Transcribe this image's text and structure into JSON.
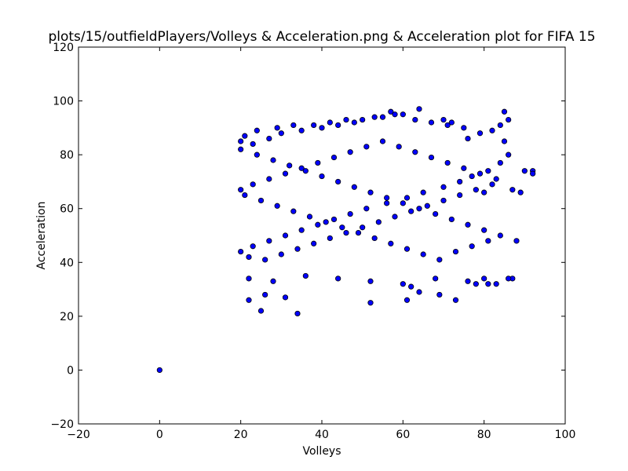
{
  "chart_data": {
    "type": "scatter",
    "title": "plots/15/outfieldPlayers/Volleys & Acceleration.png & Acceleration plot for FIFA 15",
    "xlabel": "Volleys",
    "ylabel": "Acceleration",
    "xlim": [
      -20,
      100
    ],
    "ylim": [
      -20,
      120
    ],
    "x_ticks": [
      -20,
      0,
      20,
      40,
      60,
      80,
      100
    ],
    "y_ticks": [
      -20,
      0,
      20,
      40,
      60,
      80,
      100,
      120
    ],
    "grid": false,
    "marker_color": "#0000ff",
    "marker_edge_color": "#000000",
    "series": [
      {
        "x": [
          0,
          25,
          34,
          31,
          26,
          22,
          52,
          61,
          64,
          69,
          73,
          83,
          87,
          78,
          80,
          62,
          88,
          90,
          85,
          92,
          92,
          89,
          87,
          86,
          84,
          80,
          76,
          72,
          70,
          64,
          60,
          57,
          55,
          50,
          46,
          42,
          38,
          33,
          29,
          24,
          21,
          20,
          23,
          27,
          30,
          35,
          40,
          44,
          48,
          53,
          58,
          63,
          67,
          71,
          75,
          79,
          82,
          85,
          86,
          84,
          81,
          77,
          74,
          70,
          65,
          61,
          56,
          51,
          47,
          43,
          39,
          35,
          31,
          27,
          23,
          20,
          22,
          26,
          30,
          34,
          38,
          42,
          46,
          50,
          54,
          58,
          62,
          66,
          70,
          74,
          78,
          82,
          83,
          79,
          75,
          71,
          67,
          63,
          59,
          55,
          51,
          47,
          43,
          39,
          35,
          31,
          27,
          23,
          20,
          21,
          25,
          29,
          33,
          37,
          41,
          45,
          49,
          53,
          57,
          61,
          65,
          69,
          73,
          77,
          81,
          84,
          80,
          76,
          72,
          68,
          64,
          60,
          56,
          52,
          48,
          44,
          40,
          36,
          32,
          28,
          24,
          20,
          22,
          28,
          36,
          44,
          52,
          60,
          68,
          76,
          81,
          86
        ],
        "y": [
          0,
          22,
          21,
          27,
          28,
          26,
          25,
          26,
          29,
          28,
          26,
          32,
          34,
          32,
          34,
          31,
          48,
          74,
          96,
          74,
          73,
          66,
          67,
          93,
          91,
          66,
          86,
          92,
          93,
          97,
          95,
          96,
          94,
          93,
          93,
          92,
          91,
          91,
          90,
          89,
          87,
          85,
          84,
          86,
          88,
          89,
          90,
          91,
          92,
          94,
          95,
          93,
          92,
          91,
          90,
          88,
          89,
          85,
          80,
          77,
          74,
          72,
          70,
          68,
          66,
          64,
          62,
          60,
          58,
          56,
          54,
          52,
          50,
          48,
          46,
          44,
          42,
          41,
          43,
          45,
          47,
          49,
          51,
          53,
          55,
          57,
          59,
          61,
          63,
          65,
          67,
          69,
          71,
          73,
          75,
          77,
          79,
          81,
          83,
          85,
          83,
          81,
          79,
          77,
          75,
          73,
          71,
          69,
          67,
          65,
          63,
          61,
          59,
          57,
          55,
          53,
          51,
          49,
          47,
          45,
          43,
          41,
          44,
          46,
          48,
          50,
          52,
          54,
          56,
          58,
          60,
          62,
          64,
          66,
          68,
          70,
          72,
          74,
          76,
          78,
          80,
          82,
          34,
          33,
          35,
          34,
          33,
          32,
          34,
          33,
          32,
          34
        ]
      }
    ]
  }
}
